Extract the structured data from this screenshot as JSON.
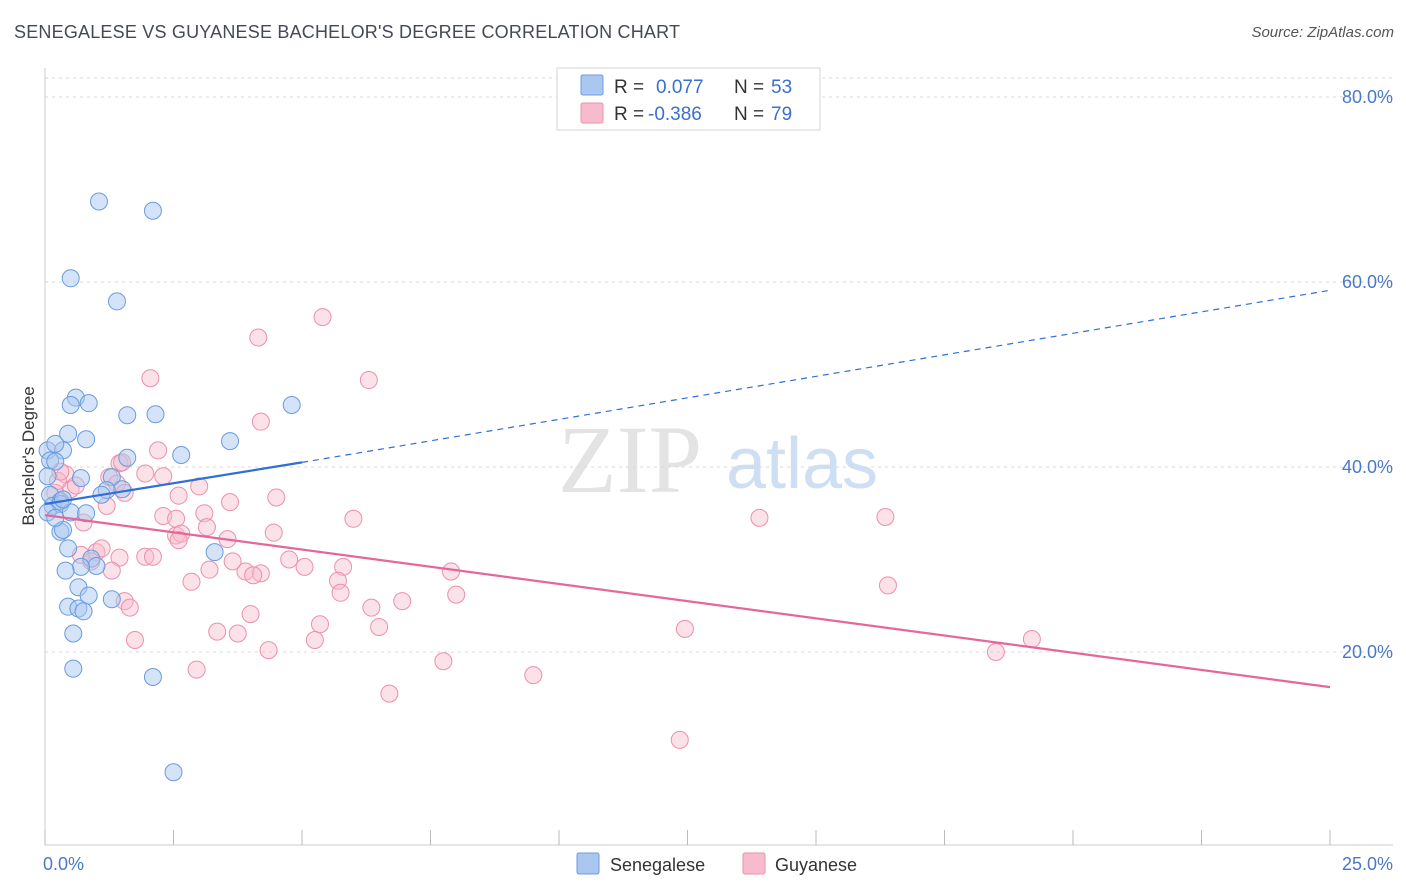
{
  "title": "SENEGALESE VS GUYANESE BACHELOR'S DEGREE CORRELATION CHART",
  "source": "Source: ZipAtlas.com",
  "watermark": {
    "zip": "ZIP",
    "atlas": "atlas"
  },
  "colors": {
    "senegalese_fill": "#a9c7ef",
    "senegalese_stroke": "#6a9be0",
    "senegalese_line": "#2f6fd6",
    "guyanese_fill": "#f6bccd",
    "guyanese_stroke": "#ee8fab",
    "guyanese_line": "#e5679a",
    "tick_text": "#4a78c8",
    "grid": "#d9d9d9"
  },
  "legend": {
    "rows": [
      {
        "r_label": "R =",
        "r_value": "0.077",
        "n_label": "N =",
        "n_value": "53"
      },
      {
        "r_label": "R =",
        "r_value": "-0.386",
        "n_label": "N =",
        "n_value": "79"
      }
    ]
  },
  "bottom_legend": [
    "Senegalese",
    "Guyanese"
  ],
  "chart_data": {
    "type": "scatter",
    "title": "SENEGALESE VS GUYANESE BACHELOR'S DEGREE CORRELATION CHART",
    "xlabel": "",
    "ylabel": "Bachelor's Degree",
    "xlim": [
      0,
      25
    ],
    "ylim": [
      0,
      82
    ],
    "x_tick_labels": {
      "left": "0.0%",
      "right": "25.0%"
    },
    "y_ticks": [
      {
        "value": 20,
        "label": "20.0%"
      },
      {
        "value": 40,
        "label": "40.0%"
      },
      {
        "value": 60,
        "label": "60.0%"
      },
      {
        "value": 80,
        "label": "80.0%"
      }
    ],
    "series": [
      {
        "name": "Senegalese",
        "r": 0.077,
        "n": 53,
        "trend": {
          "x0": 0,
          "y0": 36.0,
          "x1": 5.0,
          "y1": 40.5,
          "dash_to_x": 25,
          "dash_to_y": 59.1
        },
        "points": [
          [
            1.05,
            68.7
          ],
          [
            2.1,
            67.7
          ],
          [
            0.5,
            60.4
          ],
          [
            1.4,
            57.9
          ],
          [
            1.6,
            45.6
          ],
          [
            2.15,
            45.7
          ],
          [
            0.6,
            47.5
          ],
          [
            0.85,
            46.9
          ],
          [
            0.5,
            46.7
          ],
          [
            4.8,
            46.7
          ],
          [
            0.05,
            41.8
          ],
          [
            0.35,
            41.8
          ],
          [
            0.2,
            42.5
          ],
          [
            0.45,
            43.6
          ],
          [
            0.8,
            43.0
          ],
          [
            1.6,
            41.0
          ],
          [
            2.65,
            41.3
          ],
          [
            3.6,
            42.8
          ],
          [
            0.1,
            40.7
          ],
          [
            0.2,
            40.6
          ],
          [
            0.05,
            39.0
          ],
          [
            0.7,
            38.8
          ],
          [
            1.3,
            38.9
          ],
          [
            1.5,
            37.6
          ],
          [
            0.1,
            37.0
          ],
          [
            0.3,
            36.3
          ],
          [
            0.15,
            35.8
          ],
          [
            0.3,
            36.0
          ],
          [
            0.05,
            35.1
          ],
          [
            0.5,
            35.1
          ],
          [
            0.8,
            35.0
          ],
          [
            0.3,
            33.0
          ],
          [
            0.35,
            33.2
          ],
          [
            0.45,
            31.2
          ],
          [
            1.2,
            37.5
          ],
          [
            1.1,
            37.0
          ],
          [
            0.9,
            30.1
          ],
          [
            1.0,
            29.3
          ],
          [
            0.7,
            29.2
          ],
          [
            0.4,
            28.8
          ],
          [
            3.3,
            30.8
          ],
          [
            0.65,
            27.0
          ],
          [
            0.85,
            26.1
          ],
          [
            0.45,
            24.9
          ],
          [
            0.65,
            24.7
          ],
          [
            0.75,
            24.4
          ],
          [
            1.3,
            25.7
          ],
          [
            0.55,
            22.0
          ],
          [
            0.55,
            18.2
          ],
          [
            2.1,
            17.3
          ],
          [
            2.5,
            7.0
          ],
          [
            0.35,
            36.5
          ],
          [
            0.2,
            34.5
          ]
        ]
      },
      {
        "name": "Guyanese",
        "r": -0.386,
        "n": 79,
        "trend": {
          "x0": 0,
          "y0": 34.8,
          "x1": 25,
          "y1": 16.2
        },
        "points": [
          [
            5.4,
            56.2
          ],
          [
            4.15,
            54.0
          ],
          [
            6.3,
            49.4
          ],
          [
            2.05,
            49.6
          ],
          [
            4.2,
            44.9
          ],
          [
            2.2,
            41.8
          ],
          [
            1.45,
            40.4
          ],
          [
            0.4,
            39.2
          ],
          [
            1.25,
            38.9
          ],
          [
            1.4,
            38.2
          ],
          [
            1.95,
            39.3
          ],
          [
            2.3,
            39.0
          ],
          [
            3.0,
            37.9
          ],
          [
            0.5,
            37.6
          ],
          [
            0.2,
            37.2
          ],
          [
            0.25,
            38.5
          ],
          [
            1.55,
            37.2
          ],
          [
            2.6,
            36.9
          ],
          [
            3.6,
            36.2
          ],
          [
            4.5,
            36.7
          ],
          [
            1.2,
            35.8
          ],
          [
            2.3,
            34.7
          ],
          [
            3.1,
            35.0
          ],
          [
            0.75,
            34.0
          ],
          [
            2.55,
            34.4
          ],
          [
            3.15,
            33.5
          ],
          [
            2.55,
            32.6
          ],
          [
            2.65,
            32.8
          ],
          [
            4.45,
            32.9
          ],
          [
            3.55,
            32.2
          ],
          [
            2.6,
            32.1
          ],
          [
            6.0,
            34.4
          ],
          [
            13.9,
            34.5
          ],
          [
            16.35,
            34.6
          ],
          [
            1.45,
            30.2
          ],
          [
            1.0,
            30.8
          ],
          [
            0.7,
            30.5
          ],
          [
            1.1,
            31.2
          ],
          [
            1.95,
            30.3
          ],
          [
            2.1,
            30.3
          ],
          [
            4.75,
            30.0
          ],
          [
            5.05,
            29.2
          ],
          [
            5.8,
            29.2
          ],
          [
            3.2,
            28.9
          ],
          [
            3.9,
            28.7
          ],
          [
            4.2,
            28.5
          ],
          [
            7.9,
            28.7
          ],
          [
            4.05,
            28.3
          ],
          [
            1.3,
            28.8
          ],
          [
            5.7,
            27.7
          ],
          [
            2.85,
            27.6
          ],
          [
            16.4,
            27.2
          ],
          [
            5.75,
            26.4
          ],
          [
            8.0,
            26.2
          ],
          [
            6.95,
            25.5
          ],
          [
            1.55,
            25.5
          ],
          [
            6.35,
            24.8
          ],
          [
            1.65,
            24.8
          ],
          [
            4.0,
            24.1
          ],
          [
            5.35,
            23.0
          ],
          [
            6.5,
            22.7
          ],
          [
            12.45,
            22.5
          ],
          [
            3.35,
            22.2
          ],
          [
            3.75,
            22.0
          ],
          [
            1.75,
            21.3
          ],
          [
            5.25,
            21.3
          ],
          [
            19.2,
            21.4
          ],
          [
            4.35,
            20.2
          ],
          [
            18.5,
            20.0
          ],
          [
            7.75,
            19.0
          ],
          [
            2.95,
            18.1
          ],
          [
            9.5,
            17.5
          ],
          [
            6.7,
            15.5
          ],
          [
            12.35,
            10.5
          ],
          [
            0.3,
            39.5
          ],
          [
            0.6,
            38.0
          ],
          [
            1.5,
            40.5
          ],
          [
            3.65,
            29.8
          ],
          [
            0.9,
            29.8
          ]
        ]
      }
    ]
  }
}
